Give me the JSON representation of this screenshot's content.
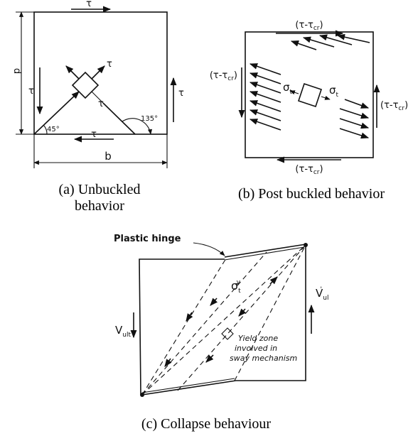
{
  "panel_a": {
    "tau_labels": [
      "τ",
      "τ",
      "τ",
      "τ",
      "τ",
      "τ"
    ],
    "dimension_d": "d",
    "dimension_b": "b",
    "angle_left": "45°",
    "angle_right": "135°",
    "caption": [
      "(a) Unbuckled",
      "behavior"
    ]
  },
  "panel_b": {
    "shear_labels": [
      {
        "text": "(τ-τ",
        "sub": "cr",
        "end": ")"
      },
      {
        "text": "(τ-τ",
        "sub": "cr",
        "end": ")"
      },
      {
        "text": "(τ-τ",
        "sub": "cr",
        "end": ")"
      },
      {
        "text": "(τ-τ",
        "sub": "cr",
        "end": ")"
      }
    ],
    "sigma_labels": [
      {
        "text": "σ",
        "sub": "t"
      },
      {
        "text": "σ",
        "sub": "t"
      }
    ],
    "caption": "(b) Post buckled behavior"
  },
  "panel_c": {
    "plastic_hinge": "Plastic hinge",
    "sigma": {
      "text": "σ",
      "sub": "t",
      "sup": "y"
    },
    "v_right": {
      "text": "V",
      "sub": "ul",
      "sup": "'"
    },
    "v_left": {
      "text": "V",
      "sub": "ult"
    },
    "yield_zone": [
      "Yield zone",
      "involved in",
      "sway mechanism"
    ],
    "caption": "(c) Collapse behaviour"
  }
}
